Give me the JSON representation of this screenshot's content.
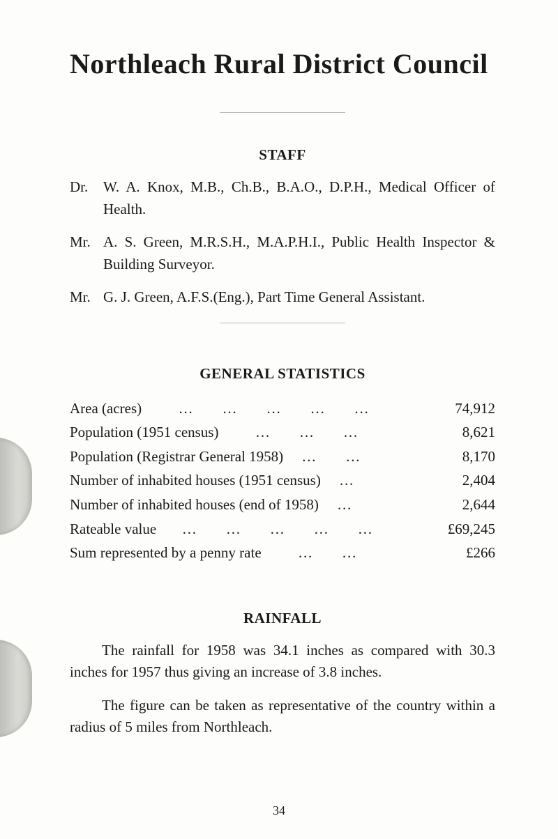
{
  "title": "Northleach Rural District Council",
  "sections": {
    "staff": {
      "heading": "STAFF",
      "entries": [
        {
          "prefix": "Dr.",
          "text": "W. A. Knox, M.B., Ch.B., B.A.O., D.P.H., Medical Officer of Health."
        },
        {
          "prefix": "Mr.",
          "text": "A. S. Green, M.R.S.H., M.A.P.H.I., Public Health Inspector & Building Surveyor."
        },
        {
          "prefix": "Mr.",
          "text": "G. J. Green, A.F.S.(Eng.), Part Time General Assistant."
        }
      ]
    },
    "statistics": {
      "heading": "GENERAL STATISTICS",
      "rows": [
        {
          "label": "Area (acres)          …        …        …        …        …",
          "value": "74,912"
        },
        {
          "label": "Population (1951 census)          …        …        …",
          "value": "8,621"
        },
        {
          "label": "Population (Registrar General 1958)     …        …",
          "value": "8,170"
        },
        {
          "label": "Number of inhabited houses (1951 census)     …",
          "value": "2,404"
        },
        {
          "label": "Number of inhabited houses (end of 1958)     …",
          "value": "2,644"
        },
        {
          "label": "Rateable value       …        …        …        …        …",
          "value": "£69,245"
        },
        {
          "label": "Sum represented by a penny rate          …        …",
          "value": "£266"
        }
      ]
    },
    "rainfall": {
      "heading": "RAINFALL",
      "paragraphs": [
        "The rainfall for 1958 was 34.1 inches as compared with 30.3 inches for 1957 thus giving an increase of 3.8 inches.",
        "The figure can be taken as representative of the country within a radius of 5 miles from Northleach."
      ]
    }
  },
  "page_number": "34"
}
